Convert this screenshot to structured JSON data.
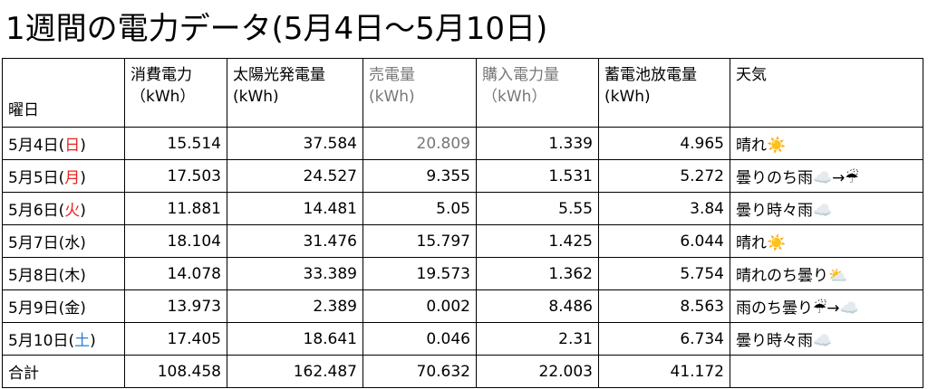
{
  "title": "1週間の電力データ(5月4日〜5月10日)",
  "table": {
    "header": [
      [
        "曜日"
      ],
      [
        "消費電力",
        "（kWh）"
      ],
      [
        "太陽光発電量",
        "(kWh)"
      ],
      [
        "売電量",
        "(kWh)"
      ],
      [
        "購入電力量",
        "（kWh）"
      ],
      [
        "蓄電池放電量",
        "(kWh)"
      ],
      [
        "天気"
      ]
    ],
    "header_muted": [
      3,
      4
    ],
    "muted_color": "#777777",
    "rows": [
      {
        "date": [
          "5月4日(",
          "日",
          ")"
        ],
        "day_color": "#e8231f",
        "cells": [
          "15.514",
          "37.584",
          "20.809",
          "1.339",
          "4.965"
        ],
        "muted": [
          2
        ],
        "weather": "晴れ☀️"
      },
      {
        "date": [
          "5月5日(",
          "月",
          ")"
        ],
        "day_color": "#e8231f",
        "cells": [
          "17.503",
          "24.527",
          "9.355",
          "1.531",
          "5.272"
        ],
        "weather": "曇りのち雨☁️→☔"
      },
      {
        "date": [
          "5月6日(",
          "火",
          ")"
        ],
        "day_color": "#e8231f",
        "cells": [
          "11.881",
          "14.481",
          "5.05",
          "5.55",
          "3.84"
        ],
        "weather": "曇り時々雨☁️"
      },
      {
        "date": [
          "5月7日(",
          "水",
          ")"
        ],
        "cells": [
          "18.104",
          "31.476",
          "15.797",
          "1.425",
          "6.044"
        ],
        "weather": "晴れ☀️"
      },
      {
        "date": [
          "5月8日(",
          "木",
          ")"
        ],
        "cells": [
          "14.078",
          "33.389",
          "19.573",
          "1.362",
          "5.754"
        ],
        "weather": "晴れのち曇り⛅"
      },
      {
        "date": [
          "5月9日(",
          "金",
          ")"
        ],
        "cells": [
          "13.973",
          "2.389",
          "0.002",
          "8.486",
          "8.563"
        ],
        "weather": "雨のち曇り☔→☁️"
      },
      {
        "date": [
          "5月10日(",
          "土",
          ")"
        ],
        "day_color": "#2a7bd8",
        "cells": [
          "17.405",
          "18.641",
          "0.046",
          "2.31",
          "6.734"
        ],
        "weather": "曇り時々雨☁️"
      }
    ],
    "total": {
      "label": "合計",
      "cells": [
        "108.458",
        "162.487",
        "70.632",
        "22.003",
        "41.172"
      ]
    }
  }
}
